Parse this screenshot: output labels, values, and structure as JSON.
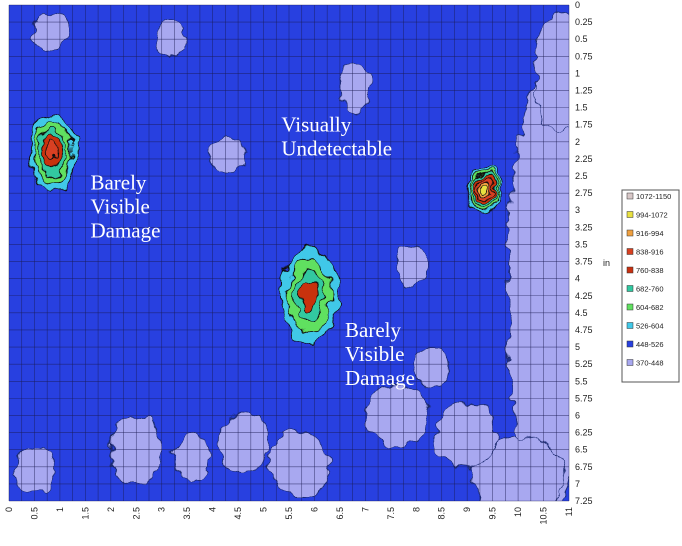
{
  "chart_data": {
    "type": "heatmap",
    "title": "",
    "xlabel": "",
    "ylabel": "in",
    "xlim": [
      0,
      11
    ],
    "ylim": [
      0,
      7.25
    ],
    "x_ticks": [
      "0",
      "0.5",
      "1",
      "1.5",
      "2",
      "2.5",
      "3",
      "3.5",
      "4",
      "4.5",
      "5",
      "5.5",
      "6",
      "6.5",
      "7",
      "7.5",
      "8",
      "8.5",
      "9",
      "9.5",
      "10",
      "10.5",
      "11"
    ],
    "y_ticks": [
      "0",
      "0.25",
      "0.5",
      "0.75",
      "1",
      "1.25",
      "1.5",
      "1.75",
      "2",
      "2.25",
      "2.5",
      "2.75",
      "3",
      "3.25",
      "3.5",
      "3.75",
      "4",
      "4.25",
      "4.5",
      "4.75",
      "5",
      "5.25",
      "5.5",
      "5.75",
      "6",
      "6.25",
      "6.5",
      "6.75",
      "7",
      "7.25"
    ],
    "grid": true,
    "legend_position": "right",
    "legend": [
      {
        "label": "1072-1150",
        "color": "#d8c8c8"
      },
      {
        "label": "994-1072",
        "color": "#e8e040"
      },
      {
        "label": "916-994",
        "color": "#f0a040"
      },
      {
        "label": "838-916",
        "color": "#d84020"
      },
      {
        "label": "760-838",
        "color": "#c83010"
      },
      {
        "label": "682-760",
        "color": "#30c8a0"
      },
      {
        "label": "604-682",
        "color": "#60e060"
      },
      {
        "label": "526-604",
        "color": "#40c8e8"
      },
      {
        "label": "448-526",
        "color": "#2840e0"
      },
      {
        "label": "370-448",
        "color": "#a8a8f0"
      }
    ],
    "annotations": [
      {
        "lines": [
          "Barely",
          "Visible",
          "Damage"
        ],
        "x": 1.6,
        "y": 2.7
      },
      {
        "lines": [
          "Visually",
          "Undetectable"
        ],
        "x": 5.35,
        "y": 1.85
      },
      {
        "lines": [
          "Barely",
          "Visible",
          "Damage"
        ],
        "x": 6.6,
        "y": 4.85
      }
    ],
    "hotspots": [
      {
        "name": "left-hotspot",
        "x": 0.85,
        "y": 2.15,
        "rx": 0.45,
        "ry": 0.55,
        "peak": "838-916"
      },
      {
        "name": "center-hotspot",
        "x": 5.9,
        "y": 4.25,
        "rx": 0.55,
        "ry": 0.7,
        "peak": "760-838"
      },
      {
        "name": "right-hotspot",
        "x": 9.35,
        "y": 2.7,
        "rx": 0.35,
        "ry": 0.35,
        "peak": "994-1072"
      }
    ]
  }
}
